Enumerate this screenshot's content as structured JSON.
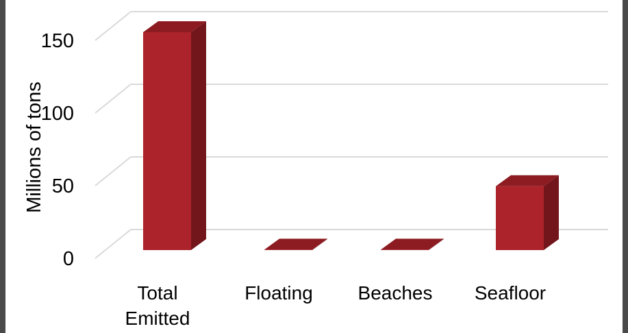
{
  "chart_data": {
    "type": "bar",
    "style": "3d-column",
    "categories": [
      "Total Emitted",
      "Floating",
      "Beaches",
      "Seafloor"
    ],
    "category_lines": [
      [
        "Total",
        "Emitted"
      ],
      [
        "Floating"
      ],
      [
        "Beaches"
      ],
      [
        "Seafloor"
      ]
    ],
    "values": [
      150,
      0.27,
      0.27,
      44
    ],
    "ylabel": "Millions of tons",
    "xlabel": "",
    "title": "",
    "ylim": [
      0,
      150
    ],
    "yticks": [
      0,
      50,
      100,
      150
    ],
    "grid": true,
    "legend": "none",
    "colors": {
      "bar_front": "#ad232b",
      "bar_side": "#73161b",
      "bar_top": "#8c1c22",
      "gridline": "#d9d9d9",
      "frame": "#4a4a4a"
    }
  }
}
